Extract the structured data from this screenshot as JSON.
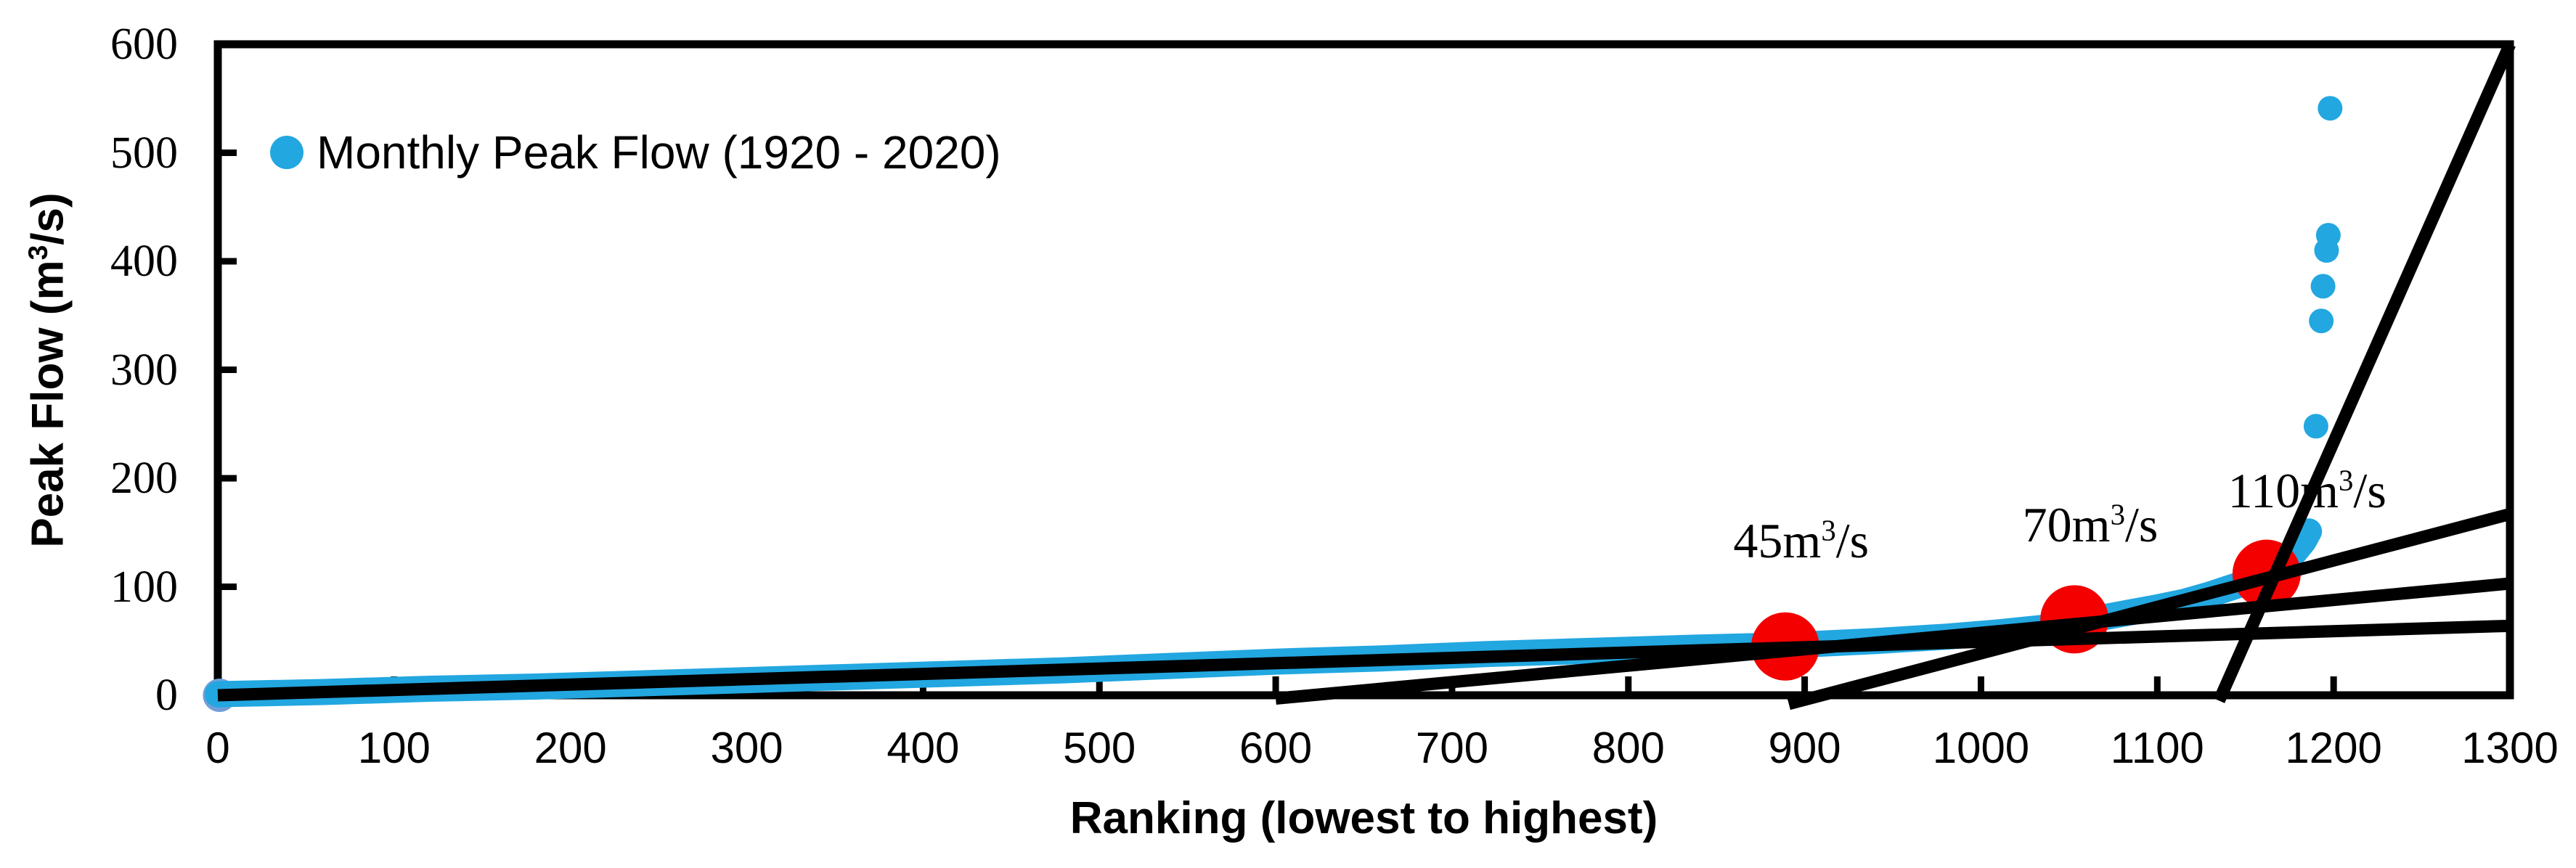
{
  "chart_data": {
    "type": "scatter",
    "xlabel": "Ranking (lowest to highest)",
    "ylabel_parts": {
      "pre": "Peak Flow (m",
      "sup": "3",
      "post": "/s)"
    },
    "xlim": [
      0,
      1300
    ],
    "ylim": [
      0,
      600
    ],
    "xticks": [
      0,
      100,
      200,
      300,
      400,
      500,
      600,
      700,
      800,
      900,
      1000,
      1100,
      1200,
      1300
    ],
    "yticks": [
      0,
      100,
      200,
      300,
      400,
      500,
      600
    ],
    "grid": false,
    "frame": "full-box",
    "legend": {
      "position": "upper-left-inside",
      "label": "Monthly Peak Flow (1920 - 2020)",
      "marker": "circle",
      "marker_color": "#22A7E0"
    },
    "colors": {
      "points": "#22A7E0",
      "first_point": "#6F9FD8",
      "threshold_points": "#F40000",
      "trend_lines": "#000000",
      "axes": "#000000"
    },
    "series": [
      {
        "name": "Monthly Peak Flow (1920 - 2020)",
        "render": "dense-sorted-scatter-band",
        "color": "#22A7E0",
        "band_points": [
          [
            0,
            1
          ],
          [
            60,
            3
          ],
          [
            120,
            6
          ],
          [
            180,
            8
          ],
          [
            240,
            11
          ],
          [
            300,
            14
          ],
          [
            360,
            17
          ],
          [
            420,
            20
          ],
          [
            480,
            23
          ],
          [
            540,
            27
          ],
          [
            600,
            31
          ],
          [
            660,
            34
          ],
          [
            720,
            38
          ],
          [
            780,
            41
          ],
          [
            840,
            44
          ],
          [
            890,
            46
          ],
          [
            940,
            50
          ],
          [
            980,
            54
          ],
          [
            1010,
            58
          ],
          [
            1040,
            63
          ],
          [
            1060,
            69
          ],
          [
            1080,
            75
          ],
          [
            1100,
            81
          ],
          [
            1115,
            86
          ],
          [
            1130,
            93
          ],
          [
            1145,
            101
          ],
          [
            1157,
            108
          ],
          [
            1165,
            114
          ],
          [
            1172,
            122
          ],
          [
            1178,
            132
          ],
          [
            1183,
            142
          ],
          [
            1186,
            151
          ]
        ],
        "outlier_points": [
          [
            1190,
            248
          ],
          [
            1193,
            345
          ],
          [
            1194,
            377
          ],
          [
            1196,
            410
          ],
          [
            1197,
            424
          ],
          [
            1198,
            541
          ]
        ],
        "first_point": {
          "x": 1,
          "y": 0,
          "color": "#6F9FD8"
        }
      }
    ],
    "trend_lines": [
      {
        "name": "trend-segment-low",
        "x1": 0,
        "y1": 0,
        "x2": 1300,
        "y2": 64
      },
      {
        "name": "trend-segment-mid",
        "x1": 600,
        "y1": -3,
        "x2": 1300,
        "y2": 103
      },
      {
        "name": "trend-segment-high",
        "x1": 891,
        "y1": -8,
        "x2": 1300,
        "y2": 167
      },
      {
        "name": "trend-segment-steep",
        "x1": 1135,
        "y1": -5,
        "x2": 1300,
        "y2": 600
      }
    ],
    "thresholds": [
      {
        "x": 889,
        "y": 45,
        "label_pre": "45m",
        "label_sup": "3",
        "label_post": "/s",
        "label_anchor_x": 898,
        "label_anchor_y": 117
      },
      {
        "x": 1053,
        "y": 70,
        "label_pre": "70m",
        "label_sup": "3",
        "label_post": "/s",
        "label_anchor_x": 1062,
        "label_anchor_y": 132
      },
      {
        "x": 1162,
        "y": 112,
        "label_pre": "110m",
        "label_sup": "3",
        "label_post": "/s",
        "label_anchor_x": 1185,
        "label_anchor_y": 163
      }
    ]
  }
}
